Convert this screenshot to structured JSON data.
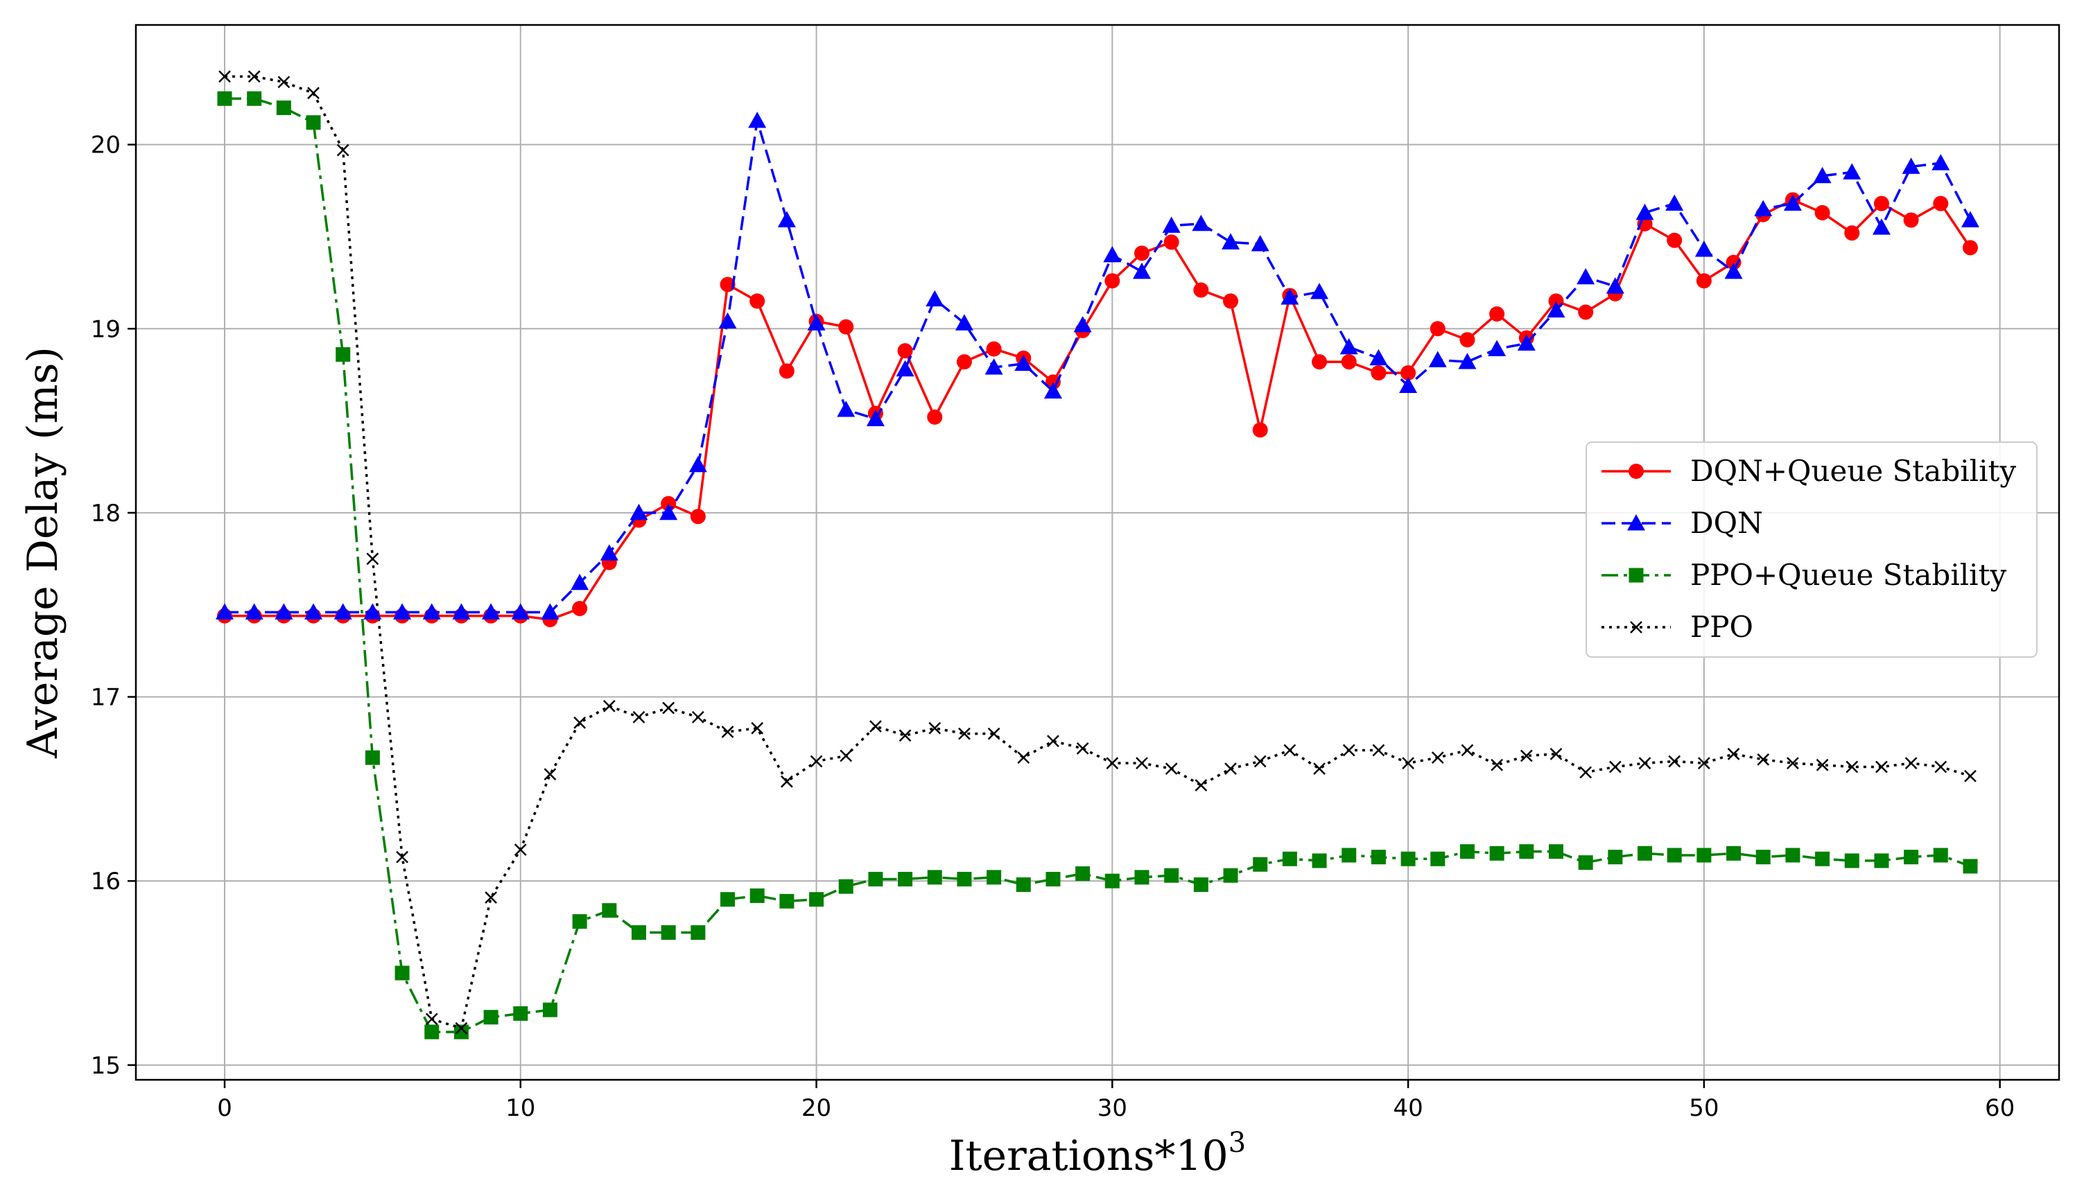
{
  "chart_data": {
    "type": "line",
    "title": "",
    "xlabel": "Iterations*10",
    "xlabel_sup": "3",
    "ylabel": "Average Delay (ms)",
    "xlim": [
      -3,
      62
    ],
    "ylim": [
      14.92,
      20.65
    ],
    "xticks": [
      0,
      10,
      20,
      30,
      40,
      50,
      60
    ],
    "yticks": [
      15,
      16,
      17,
      18,
      19,
      20
    ],
    "grid": true,
    "legend_position": "center-right",
    "x": [
      0,
      1,
      2,
      3,
      4,
      5,
      6,
      7,
      8,
      9,
      10,
      11,
      12,
      13,
      14,
      15,
      16,
      17,
      18,
      19,
      20,
      21,
      22,
      23,
      24,
      25,
      26,
      27,
      28,
      29,
      30,
      31,
      32,
      33,
      34,
      35,
      36,
      37,
      38,
      39,
      40,
      41,
      42,
      43,
      44,
      45,
      46,
      47,
      48,
      49,
      50,
      51,
      52,
      53,
      54,
      55,
      56,
      57,
      58,
      59
    ],
    "series": [
      {
        "name": "DQN+Queue Stability",
        "color": "#ff0000",
        "line_style": "solid",
        "marker": "circle",
        "values": [
          17.44,
          17.44,
          17.44,
          17.44,
          17.44,
          17.44,
          17.44,
          17.44,
          17.44,
          17.44,
          17.44,
          17.42,
          17.48,
          17.73,
          17.96,
          18.05,
          17.98,
          19.24,
          19.15,
          18.77,
          19.04,
          19.01,
          18.54,
          18.88,
          18.52,
          18.82,
          18.89,
          18.84,
          18.71,
          18.99,
          19.26,
          19.41,
          19.47,
          19.21,
          19.15,
          18.45,
          19.18,
          18.82,
          18.82,
          18.76,
          18.76,
          19.0,
          18.94,
          19.08,
          18.95,
          19.15,
          19.09,
          19.19,
          19.57,
          19.48,
          19.26,
          19.36,
          19.62,
          19.7,
          19.63,
          19.52,
          19.68,
          19.59,
          19.68,
          19.44
        ]
      },
      {
        "name": "DQN",
        "color": "#0000ff",
        "line_style": "dashed",
        "marker": "triangle",
        "values": [
          17.46,
          17.46,
          17.46,
          17.46,
          17.46,
          17.46,
          17.46,
          17.46,
          17.46,
          17.46,
          17.46,
          17.46,
          17.62,
          17.78,
          18.0,
          18.0,
          18.26,
          19.04,
          20.13,
          19.59,
          19.03,
          18.56,
          18.51,
          18.78,
          19.16,
          19.03,
          18.79,
          18.81,
          18.66,
          19.02,
          19.4,
          19.31,
          19.56,
          19.57,
          19.47,
          19.46,
          19.17,
          19.2,
          18.9,
          18.84,
          18.69,
          18.83,
          18.82,
          18.89,
          18.92,
          19.1,
          19.28,
          19.23,
          19.63,
          19.68,
          19.43,
          19.31,
          19.65,
          19.68,
          19.83,
          19.85,
          19.55,
          19.88,
          19.9,
          19.59
        ]
      },
      {
        "name": "PPO+Queue Stability",
        "color": "#008000",
        "line_style": "dashdot",
        "marker": "square",
        "values": [
          20.25,
          20.25,
          20.2,
          20.12,
          18.86,
          16.67,
          15.5,
          15.18,
          15.18,
          15.26,
          15.28,
          15.3,
          15.78,
          15.84,
          15.72,
          15.72,
          15.72,
          15.9,
          15.92,
          15.89,
          15.9,
          15.97,
          16.01,
          16.01,
          16.02,
          16.01,
          16.02,
          15.98,
          16.01,
          16.04,
          16.0,
          16.02,
          16.03,
          15.98,
          16.03,
          16.09,
          16.12,
          16.11,
          16.14,
          16.13,
          16.12,
          16.12,
          16.16,
          16.15,
          16.16,
          16.16,
          16.1,
          16.13,
          16.15,
          16.14,
          16.14,
          16.15,
          16.13,
          16.14,
          16.12,
          16.11,
          16.11,
          16.13,
          16.14,
          16.08
        ]
      },
      {
        "name": "PPO",
        "color": "#000000",
        "line_style": "dotted",
        "marker": "x",
        "values": [
          20.37,
          20.37,
          20.34,
          20.28,
          19.97,
          17.75,
          16.13,
          15.25,
          15.2,
          15.91,
          16.17,
          16.58,
          16.86,
          16.95,
          16.89,
          16.94,
          16.89,
          16.81,
          16.83,
          16.54,
          16.65,
          16.68,
          16.84,
          16.79,
          16.83,
          16.8,
          16.8,
          16.67,
          16.76,
          16.72,
          16.64,
          16.64,
          16.61,
          16.52,
          16.61,
          16.65,
          16.71,
          16.61,
          16.71,
          16.71,
          16.64,
          16.67,
          16.71,
          16.63,
          16.68,
          16.69,
          16.59,
          16.62,
          16.64,
          16.65,
          16.64,
          16.69,
          16.66,
          16.64,
          16.63,
          16.62,
          16.62,
          16.64,
          16.62,
          16.57
        ]
      }
    ]
  }
}
